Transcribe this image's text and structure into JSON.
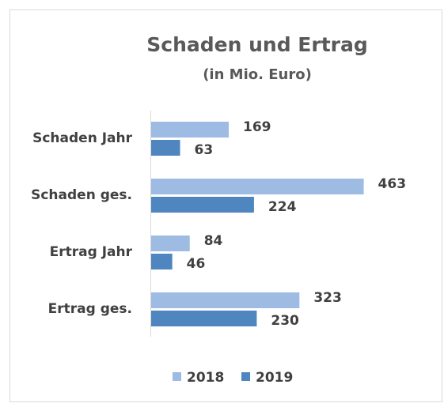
{
  "chart_data": {
    "type": "hbar",
    "title": "Schaden und Ertrag",
    "subtitle": "(in Mio. Euro)",
    "categories": [
      "Schaden Jahr",
      "Schaden ges.",
      "Ertrag Jahr",
      "Ertrag ges."
    ],
    "series": [
      {
        "name": "2018",
        "color": "#9dbbe3",
        "values": [
          169,
          463,
          84,
          323
        ]
      },
      {
        "name": "2019",
        "color": "#4f86c0",
        "values": [
          63,
          224,
          46,
          230
        ]
      }
    ],
    "xlim": [
      0,
      500
    ],
    "legend": "bottom"
  }
}
